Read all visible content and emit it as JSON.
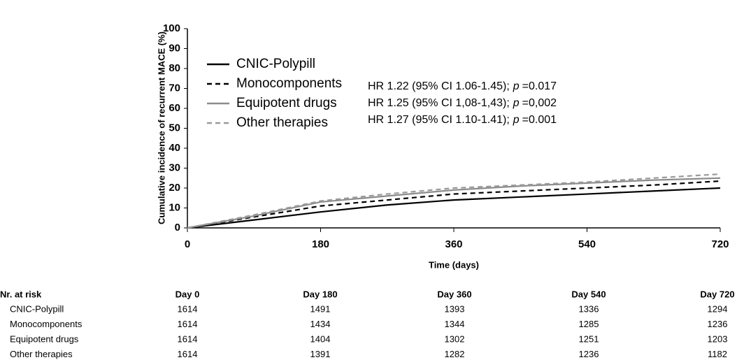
{
  "chart_data": {
    "type": "line",
    "ylabel": "Cumulative incidence of recurrent MACE (%)",
    "xlabel": "Time (days)",
    "x": [
      0,
      90,
      180,
      270,
      360,
      450,
      540,
      630,
      720
    ],
    "series": [
      {
        "name": "CNIC-Polypill",
        "color": "#000000",
        "dash": "solid",
        "values": [
          0,
          4,
          8,
          11.5,
          14,
          15.5,
          17,
          18.5,
          20
        ]
      },
      {
        "name": "Monocomponents",
        "color": "#000000",
        "dash": "dashed",
        "values": [
          0,
          5.5,
          11,
          14,
          17,
          18.5,
          20,
          21.5,
          23.5
        ]
      },
      {
        "name": "Equipotent drugs",
        "color": "#8c8c8c",
        "dash": "solid",
        "values": [
          0,
          6,
          13,
          16,
          19,
          21,
          22.5,
          24,
          25
        ]
      },
      {
        "name": "Other therapies",
        "color": "#9a9a9a",
        "dash": "dashed",
        "values": [
          0,
          6.5,
          13.5,
          17,
          20,
          21.5,
          23,
          25,
          27
        ]
      }
    ],
    "xlim": [
      0,
      720
    ],
    "xticks": [
      0,
      180,
      360,
      540,
      720
    ],
    "ylim": [
      0,
      100
    ],
    "yticks": [
      0,
      10,
      20,
      30,
      40,
      50,
      60,
      70,
      80,
      90,
      100
    ],
    "grid": false,
    "legend": "upper left",
    "annotations": [
      {
        "prefix": "HR 1.22 (95% CI 1.06-1.45);",
        "italic": "p",
        "suffix": "=0.017"
      },
      {
        "prefix": "HR 1.25 (95% CI 1,08-1,43);",
        "italic": "p",
        "suffix": "=0,002"
      },
      {
        "prefix": "HR 1.27 (95% CI 1.10-1.41);",
        "italic": "p",
        "suffix": "=0.001"
      }
    ]
  },
  "risk_table": {
    "title": "Nr. at risk",
    "columns": [
      "Day 0",
      "Day 180",
      "Day 360",
      "Day 540",
      "Day 720"
    ],
    "rows": [
      {
        "label": "CNIC-Polypill",
        "values": [
          1614,
          1491,
          1393,
          1336,
          1294
        ]
      },
      {
        "label": "Monocomponents",
        "values": [
          1614,
          1434,
          1344,
          1285,
          1236
        ]
      },
      {
        "label": "Equipotent drugs",
        "values": [
          1614,
          1404,
          1302,
          1251,
          1203
        ]
      },
      {
        "label": "Other therapies",
        "values": [
          1614,
          1391,
          1282,
          1236,
          1182
        ]
      }
    ]
  }
}
